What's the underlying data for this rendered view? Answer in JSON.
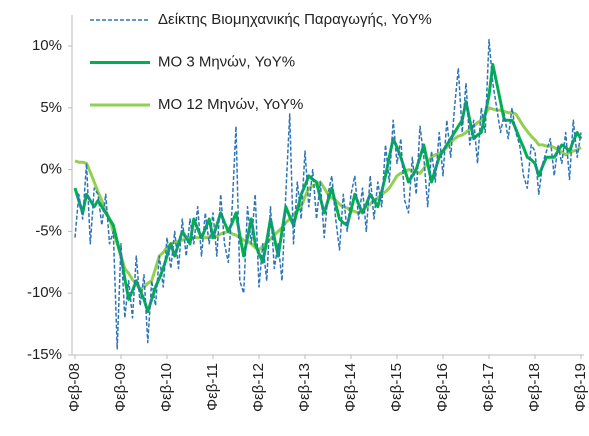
{
  "chart_data": {
    "type": "line",
    "categories": [
      "Φεβ-08",
      null,
      null,
      null,
      null,
      null,
      null,
      null,
      null,
      null,
      null,
      null,
      "Φεβ-09",
      null,
      null,
      null,
      null,
      null,
      null,
      null,
      null,
      null,
      null,
      null,
      "Φεβ-10",
      null,
      null,
      null,
      null,
      null,
      null,
      null,
      null,
      null,
      null,
      null,
      "Φεβ-11",
      null,
      null,
      null,
      null,
      null,
      null,
      null,
      null,
      null,
      null,
      null,
      "Φεβ-12",
      null,
      null,
      null,
      null,
      null,
      null,
      null,
      null,
      null,
      null,
      null,
      "Φεβ-13",
      null,
      null,
      null,
      null,
      null,
      null,
      null,
      null,
      null,
      null,
      null,
      "Φεβ-14",
      null,
      null,
      null,
      null,
      null,
      null,
      null,
      null,
      null,
      null,
      null,
      "Φεβ-15",
      null,
      null,
      null,
      null,
      null,
      null,
      null,
      null,
      null,
      null,
      null,
      "Φεβ-16",
      null,
      null,
      null,
      null,
      null,
      null,
      null,
      null,
      null,
      null,
      null,
      "Φεβ-17",
      null,
      null,
      null,
      null,
      null,
      null,
      null,
      null,
      null,
      null,
      null,
      "Φεβ-18",
      null,
      null,
      null,
      null,
      null,
      null,
      null,
      null,
      null,
      null,
      null,
      "Φεβ-19"
    ],
    "series": [
      {
        "name": "Δείκτης Βιομηχανικής Παραγωγής, YoY%",
        "color": "#2e75b6",
        "style": "dashed",
        "values": [
          -5.5,
          -2,
          -4,
          0.5,
          -6,
          -1.5,
          -2,
          -4.5,
          -2,
          -6,
          -5,
          -14.5,
          -6,
          -12,
          -9,
          -12,
          -7,
          -11,
          -8.5,
          -14,
          -9,
          -11,
          -7,
          -9.5,
          -5.5,
          -8,
          -5,
          -8,
          -4,
          -7,
          -4,
          -6,
          -3,
          -7,
          -3.5,
          -6,
          -3.5,
          -7,
          -2,
          -6,
          -7.5,
          -3,
          3.5,
          -9,
          -10,
          -3,
          -6,
          -2,
          -9.5,
          -6,
          -9,
          -3,
          -8,
          -6,
          -9,
          -2,
          4.5,
          -6,
          -1,
          -4,
          1.5,
          -3,
          0,
          -4,
          -1,
          -5.5,
          -2,
          -0.5,
          -4,
          -6.5,
          -2,
          -5,
          -2,
          -0.5,
          -4,
          -1.5,
          -5,
          -0.5,
          -4,
          -1,
          -3,
          2,
          -1,
          4,
          0.5,
          2.5,
          -2.5,
          -3.5,
          1,
          -2,
          3.5,
          1,
          -3,
          1.5,
          -1,
          3,
          -0.5,
          4,
          1,
          5,
          8.2,
          3,
          7,
          2,
          4,
          0.5,
          5,
          3,
          10.5,
          7,
          5,
          3,
          4.5,
          2.5,
          5,
          3,
          2,
          -0.5,
          -1.5,
          2,
          1.5,
          -2,
          0.5,
          1.5,
          2.5,
          -0.5,
          2,
          0.5,
          3,
          -0.8,
          4,
          1,
          3
        ]
      },
      {
        "name": "ΜΟ 3 Μηνών, YoY%",
        "color": "#00b050",
        "style": "solid",
        "values": [
          -1.5,
          -2.5,
          -3.5,
          -2,
          -2.5,
          -3,
          -2.5,
          -3,
          -3.5,
          -4,
          -4.5,
          -5.8,
          -7,
          -8.8,
          -10.5,
          -9.8,
          -9,
          -9.8,
          -10.5,
          -11.5,
          -10.5,
          -9.5,
          -8.8,
          -8,
          -7,
          -6,
          -7,
          -6,
          -5,
          -5.5,
          -6,
          -4,
          -4.8,
          -5.5,
          -4.8,
          -4,
          -5.5,
          -4.5,
          -3.5,
          -4.3,
          -5,
          -4.3,
          -3.5,
          -5.3,
          -7,
          -5.5,
          -4,
          -6,
          -6.8,
          -7.5,
          -5.8,
          -4,
          -5.5,
          -7,
          -5,
          -3,
          -3.8,
          -4.5,
          -3.3,
          -2,
          -1.3,
          -0.5,
          -0.8,
          -1,
          -2.3,
          -3.5,
          -2.5,
          -1.5,
          -2.8,
          -4,
          -4.3,
          -4.5,
          -3.3,
          -2,
          -2.8,
          -3.5,
          -2.8,
          -2,
          -2.5,
          -3,
          -1.8,
          -0.5,
          1,
          2.5,
          1.8,
          1,
          0,
          -1,
          -0.5,
          0,
          1,
          2,
          0.5,
          -1,
          0,
          1,
          1.5,
          2,
          2.5,
          3,
          3.5,
          4,
          5.5,
          4,
          2.5,
          2.8,
          3,
          4.5,
          6,
          8.5,
          7,
          5.5,
          4,
          4,
          4,
          3.3,
          2.5,
          1.8,
          1,
          0.8,
          0.5,
          -0.5,
          0.3,
          1,
          1,
          1,
          1.5,
          2,
          1.8,
          1.5,
          2.3,
          3,
          2.5
        ]
      },
      {
        "name": "ΜΟ 12 Μηνών, YoY%",
        "color": "#92d050",
        "style": "solid",
        "values": [
          0.7,
          0.6,
          0.6,
          0.5,
          -0.2,
          -1,
          -1.8,
          -2.5,
          -3.3,
          -4,
          -5,
          -6,
          -7,
          -8,
          -8.4,
          -8.9,
          -9.3,
          -9.7,
          -9.5,
          -9.2,
          -9,
          -8,
          -7,
          -6.7,
          -6.3,
          -6,
          -5.9,
          -5.8,
          -5.7,
          -5.6,
          -5.5,
          -5.5,
          -5.5,
          -5.5,
          -5.5,
          -5.5,
          -5.5,
          -5.4,
          -5.2,
          -5.1,
          -5,
          -5.2,
          -5.3,
          -5.5,
          -5.7,
          -5.8,
          -6,
          -6.3,
          -6.5,
          -6.2,
          -5.9,
          -5.6,
          -5.3,
          -5,
          -4.7,
          -4.3,
          -4,
          -3.7,
          -3.3,
          -3,
          -2.2,
          -1.5,
          -1.3,
          -1.2,
          -1,
          -1.5,
          -2,
          -2.3,
          -2.5,
          -2.8,
          -3,
          -3.1,
          -3.3,
          -3.4,
          -3.5,
          -3.3,
          -3,
          -2.8,
          -2.5,
          -2.3,
          -2,
          -1.8,
          -1.5,
          -1,
          -0.5,
          -0.3,
          -0.2,
          0,
          -0.1,
          -0.2,
          -0.3,
          0.1,
          0.6,
          1,
          1.2,
          1.3,
          1.5,
          1.8,
          2.2,
          2.5,
          2.7,
          2.8,
          3,
          3.3,
          3.5,
          3.8,
          4,
          4.5,
          5,
          4.9,
          4.8,
          4.8,
          4.7,
          4.6,
          4.6,
          4.5,
          4,
          3.5,
          3.1,
          2.7,
          2.4,
          2,
          2,
          1.9,
          1.9,
          1.8,
          1.6,
          1.4,
          1.2,
          1.4,
          1.5,
          1.6,
          1.8
        ]
      }
    ],
    "ylim": [
      -15,
      12.5
    ],
    "yticks": [
      {
        "value": -15,
        "label": "-15%"
      },
      {
        "value": -10,
        "label": "-10%"
      },
      {
        "value": -5,
        "label": "-5%"
      },
      {
        "value": 0,
        "label": "0%"
      },
      {
        "value": 5,
        "label": "5%"
      },
      {
        "value": 10,
        "label": "10%"
      }
    ],
    "grid": false,
    "legend": "top-left"
  }
}
